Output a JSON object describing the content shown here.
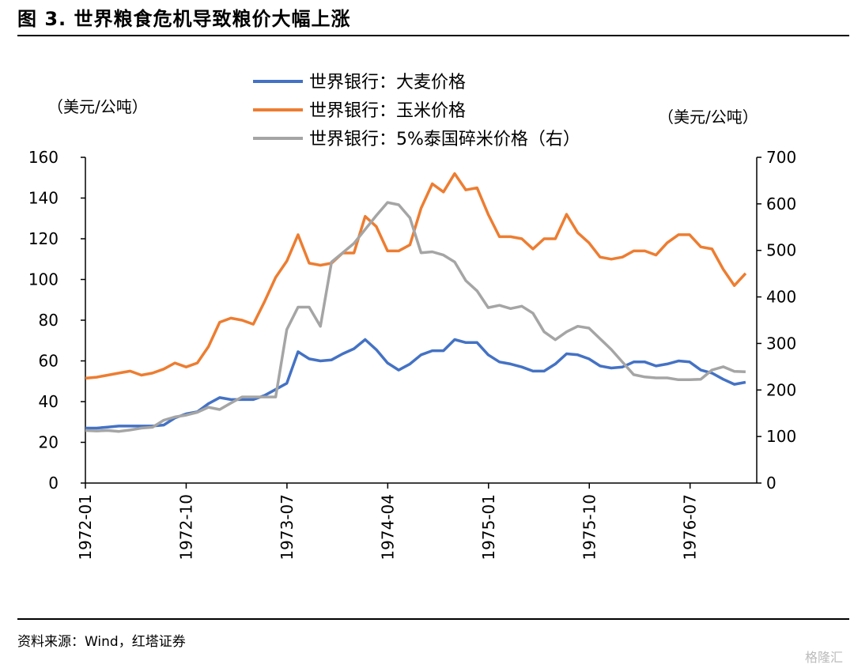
{
  "title": "图 3. 世界粮食危机导致粮价大幅上涨",
  "source": "资料来源：Wind，红塔证券",
  "watermark": "格隆汇",
  "chart_data": {
    "type": "line",
    "left_unit": "（美元/公吨）",
    "right_unit": "（美元/公吨）",
    "left_ylim": [
      0,
      160
    ],
    "left_ticks": [
      "0",
      "20",
      "40",
      "60",
      "80",
      "100",
      "120",
      "140",
      "160"
    ],
    "right_ylim": [
      0,
      700
    ],
    "right_ticks": [
      "0",
      "100",
      "200",
      "300",
      "400",
      "500",
      "600",
      "700"
    ],
    "x_start": "1972-01",
    "x_frequency": "monthly",
    "x_tick_labels": [
      "1972-01",
      "1972-10",
      "1973-07",
      "1974-04",
      "1975-01",
      "1975-10",
      "1976-07"
    ],
    "grid": false,
    "legend_position": "top",
    "series": [
      {
        "name": "世界银行：大麦价格",
        "axis": "left",
        "color": "#4472C4",
        "values": [
          27,
          27,
          27.5,
          28,
          28,
          28,
          28,
          28.5,
          32,
          34,
          35,
          39,
          42,
          41,
          41,
          41,
          43,
          46,
          49,
          64.5,
          61,
          60,
          60.5,
          63.5,
          66,
          70.5,
          65.5,
          59,
          55.5,
          58.5,
          63,
          65,
          65,
          70.5,
          69,
          69,
          63,
          59.5,
          58.5,
          57,
          55,
          55,
          58.5,
          63.5,
          63,
          61,
          57.5,
          56.5,
          57,
          59.5,
          59.5,
          57.5,
          58.5,
          60,
          59.5,
          55.5,
          54,
          51,
          48.5,
          49.5
        ]
      },
      {
        "name": "世界银行：玉米价格",
        "axis": "left",
        "color": "#ED7D31",
        "values": [
          51.5,
          52,
          53,
          54,
          55,
          53,
          54,
          56,
          59,
          57,
          59,
          67,
          79,
          81,
          80,
          78,
          89,
          101,
          109,
          122,
          108,
          107,
          108,
          113,
          113,
          131,
          126,
          114,
          114,
          117,
          135,
          147,
          143,
          152,
          144,
          145,
          132,
          121,
          121,
          120,
          115,
          120,
          120,
          132,
          123,
          118,
          111,
          110,
          111,
          114,
          114,
          112,
          118,
          122,
          122,
          116,
          115,
          105,
          97,
          103
        ]
      },
      {
        "name": "世界银行：5%泰国碎米价格（右）",
        "axis": "right",
        "color": "#A5A5A5",
        "values": [
          113,
          112,
          113,
          111,
          114,
          118,
          120,
          135,
          142,
          146,
          152,
          163,
          158,
          172,
          185,
          185,
          185,
          185,
          330,
          378,
          378,
          337,
          475,
          495,
          515,
          545,
          575,
          603,
          598,
          570,
          495,
          497,
          490,
          475,
          435,
          413,
          377,
          382,
          375,
          380,
          365,
          325,
          308,
          325,
          337,
          333,
          310,
          287,
          260,
          233,
          228,
          226,
          226,
          222,
          222,
          223,
          243,
          250,
          240,
          239
        ]
      }
    ]
  }
}
